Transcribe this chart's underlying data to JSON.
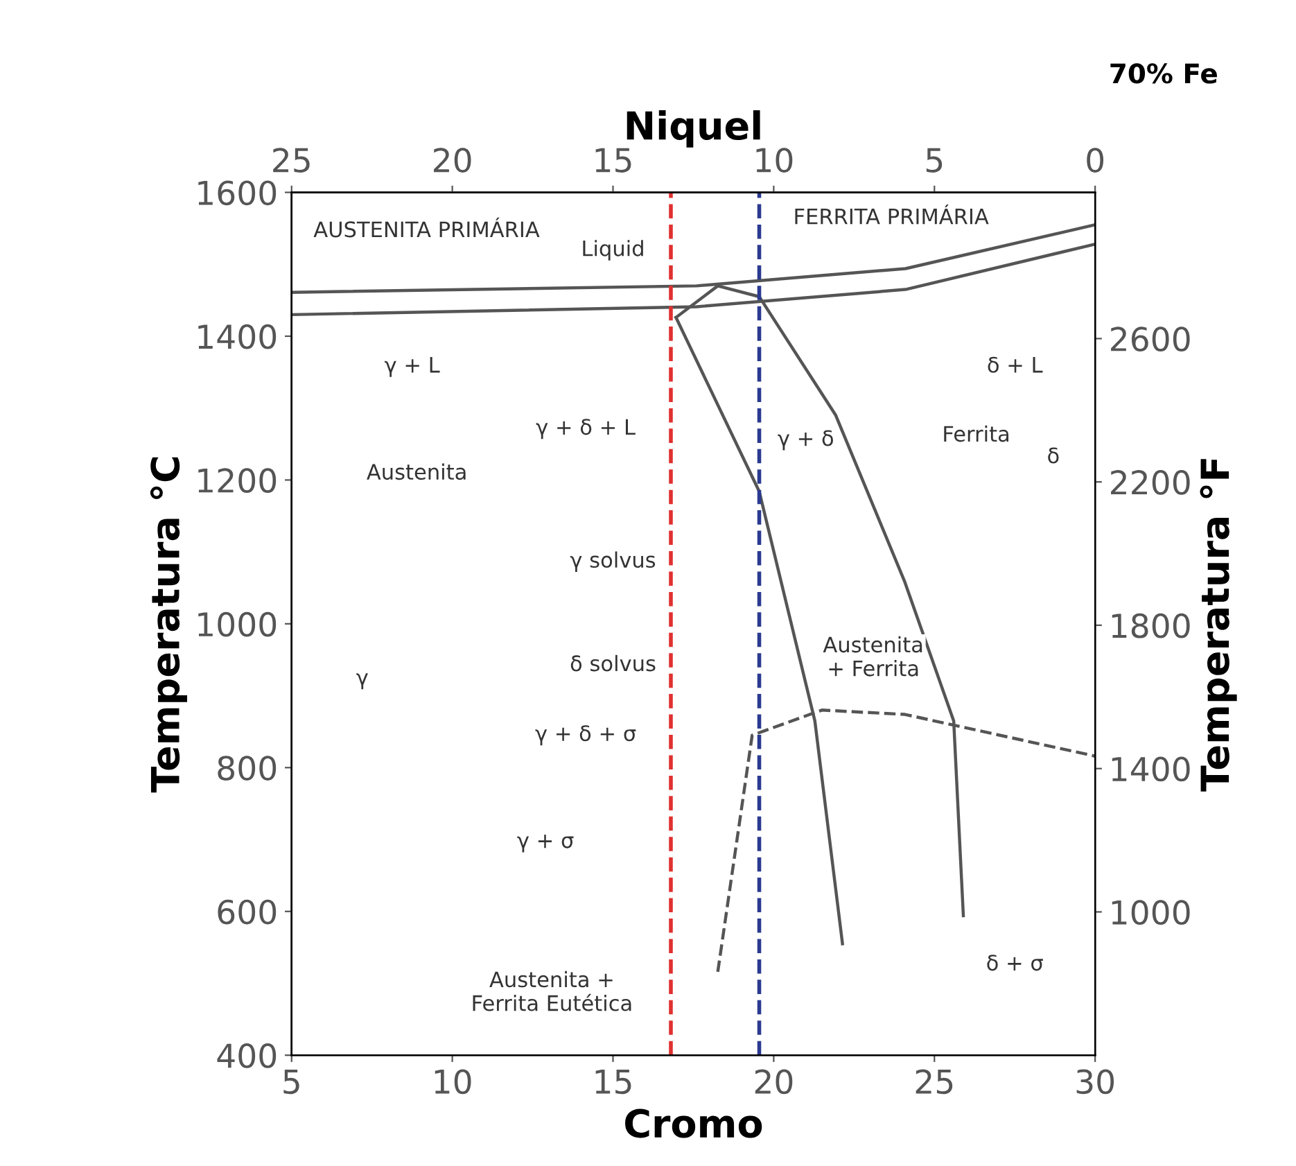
{
  "chart_data": {
    "type": "line",
    "xlabel": "Cromo",
    "x2label": "Niquel",
    "ylabel": "Temperatura °C",
    "y2label": "Temperatura °F",
    "xlim": [
      5,
      30
    ],
    "xticks": [
      5,
      10,
      15,
      20,
      25,
      30
    ],
    "x2lim": [
      25,
      0
    ],
    "x2ticks": [
      25,
      20,
      15,
      10,
      5,
      0
    ],
    "ylim": [
      400,
      1600
    ],
    "yticks": [
      400,
      600,
      800,
      1000,
      1200,
      1400,
      1600
    ],
    "y2lim": [
      600,
      3008
    ],
    "y2ticks": [
      1000,
      1400,
      1800,
      2200,
      2600
    ],
    "grid": false,
    "legend": false,
    "series": [
      {
        "color": "#555555",
        "x": [
          5,
          17.6,
          24.1,
          30
        ],
        "values": [
          1461,
          1470,
          1494,
          1555
        ]
      },
      {
        "color": "#555555",
        "x": [
          5,
          17.6,
          24.1,
          30
        ],
        "values": [
          1430,
          1441,
          1465,
          1528
        ]
      },
      {
        "color": "#555555",
        "x": [
          16.96,
          18.26,
          19.55
        ],
        "values": [
          1426,
          1470,
          1455
        ]
      },
      {
        "color": "#555555",
        "x": [
          16.96,
          19.55,
          21.28,
          22.14
        ],
        "values": [
          1426,
          1184,
          865,
          555
        ]
      },
      {
        "color": "#555555",
        "x": [
          19.55,
          21.93,
          24.08,
          25.6,
          25.9
        ],
        "values": [
          1455,
          1290,
          1058,
          865,
          594
        ]
      },
      {
        "color": "#555555",
        "line_style": "dashed",
        "x": [
          18.26,
          19.33,
          21.5,
          24.08,
          30
        ],
        "values": [
          516,
          845,
          880,
          874,
          816
        ]
      }
    ],
    "ref_lines": [
      {
        "axis": "x",
        "value": 16.8,
        "color": "#e03030",
        "line_style": "dashed"
      },
      {
        "axis": "x",
        "value": 19.55,
        "color": "#2a3a90",
        "line_style": "dashed"
      }
    ],
    "annotations": [
      "AUSTENITA PRIMÁRIA",
      "FERRITA PRIMÁRIA",
      "Liquid",
      "γ + L",
      "δ + L",
      "γ + δ + L",
      "γ + δ",
      "Austenita",
      "Ferrita",
      "δ",
      "γ solvus",
      "δ solvus",
      "γ",
      "Austenita\n+ Ferrita",
      "γ + δ + σ",
      "γ + σ",
      "δ + σ",
      "Austenita +\nFerrita Eutética",
      "70% Fe"
    ]
  }
}
